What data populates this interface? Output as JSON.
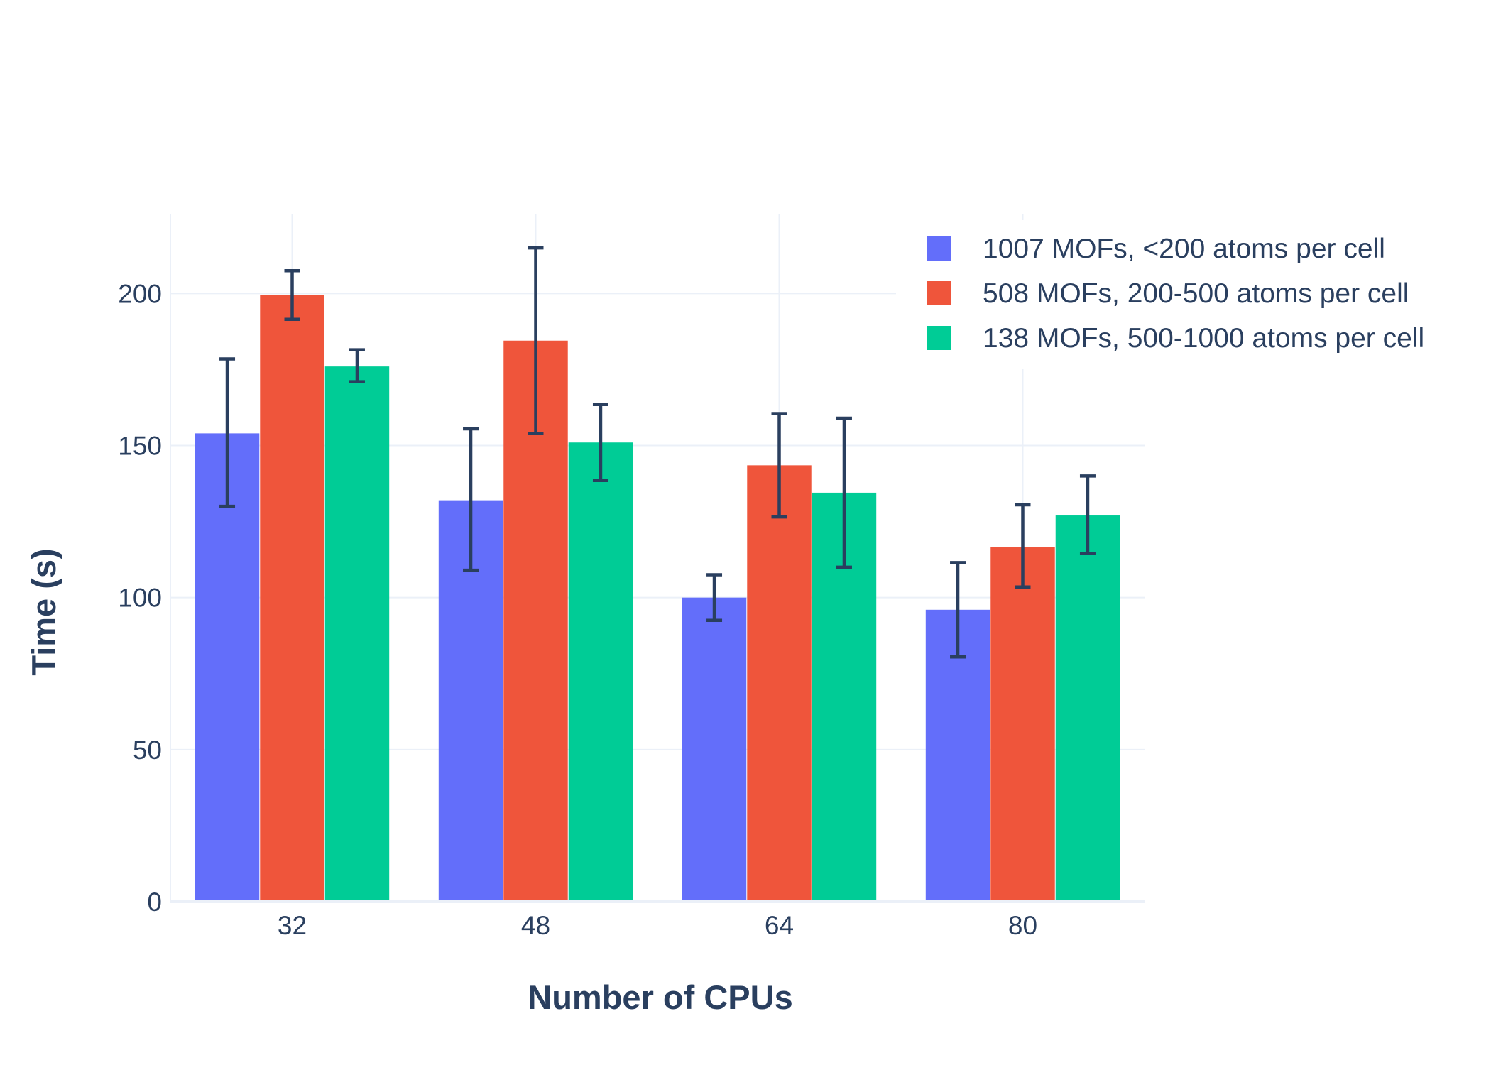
{
  "chart_data": {
    "type": "bar",
    "title": "",
    "xlabel": "Number of CPUs",
    "ylabel": "Time (s)",
    "categories": [
      "32",
      "48",
      "64",
      "80"
    ],
    "ylim": [
      0,
      226
    ],
    "yticks": [
      0,
      50,
      100,
      150,
      200
    ],
    "grid": true,
    "legend_position": "top-right",
    "series": [
      {
        "name": "1007 MOFs, <200 atoms per cell",
        "color": "#636efa",
        "values": [
          154,
          132,
          100,
          96
        ],
        "error_minus": [
          24,
          23,
          7.5,
          15.5
        ],
        "error_plus": [
          24.5,
          23.5,
          7.5,
          15.5
        ]
      },
      {
        "name": "508 MOFs, 200-500 atoms per cell",
        "color": "#ef553b",
        "values": [
          199.5,
          184.5,
          143.5,
          116.5
        ],
        "error_minus": [
          8,
          30.5,
          17,
          13
        ],
        "error_plus": [
          8,
          30.5,
          17,
          14
        ]
      },
      {
        "name": "138 MOFs, 500-1000 atoms per cell",
        "color": "#00cc96",
        "values": [
          176,
          151,
          134.5,
          127
        ],
        "error_minus": [
          5,
          12.5,
          24.5,
          12.5
        ],
        "error_plus": [
          5.5,
          12.5,
          24.5,
          13
        ]
      }
    ],
    "error_bar_color": "#2a3f5f"
  }
}
